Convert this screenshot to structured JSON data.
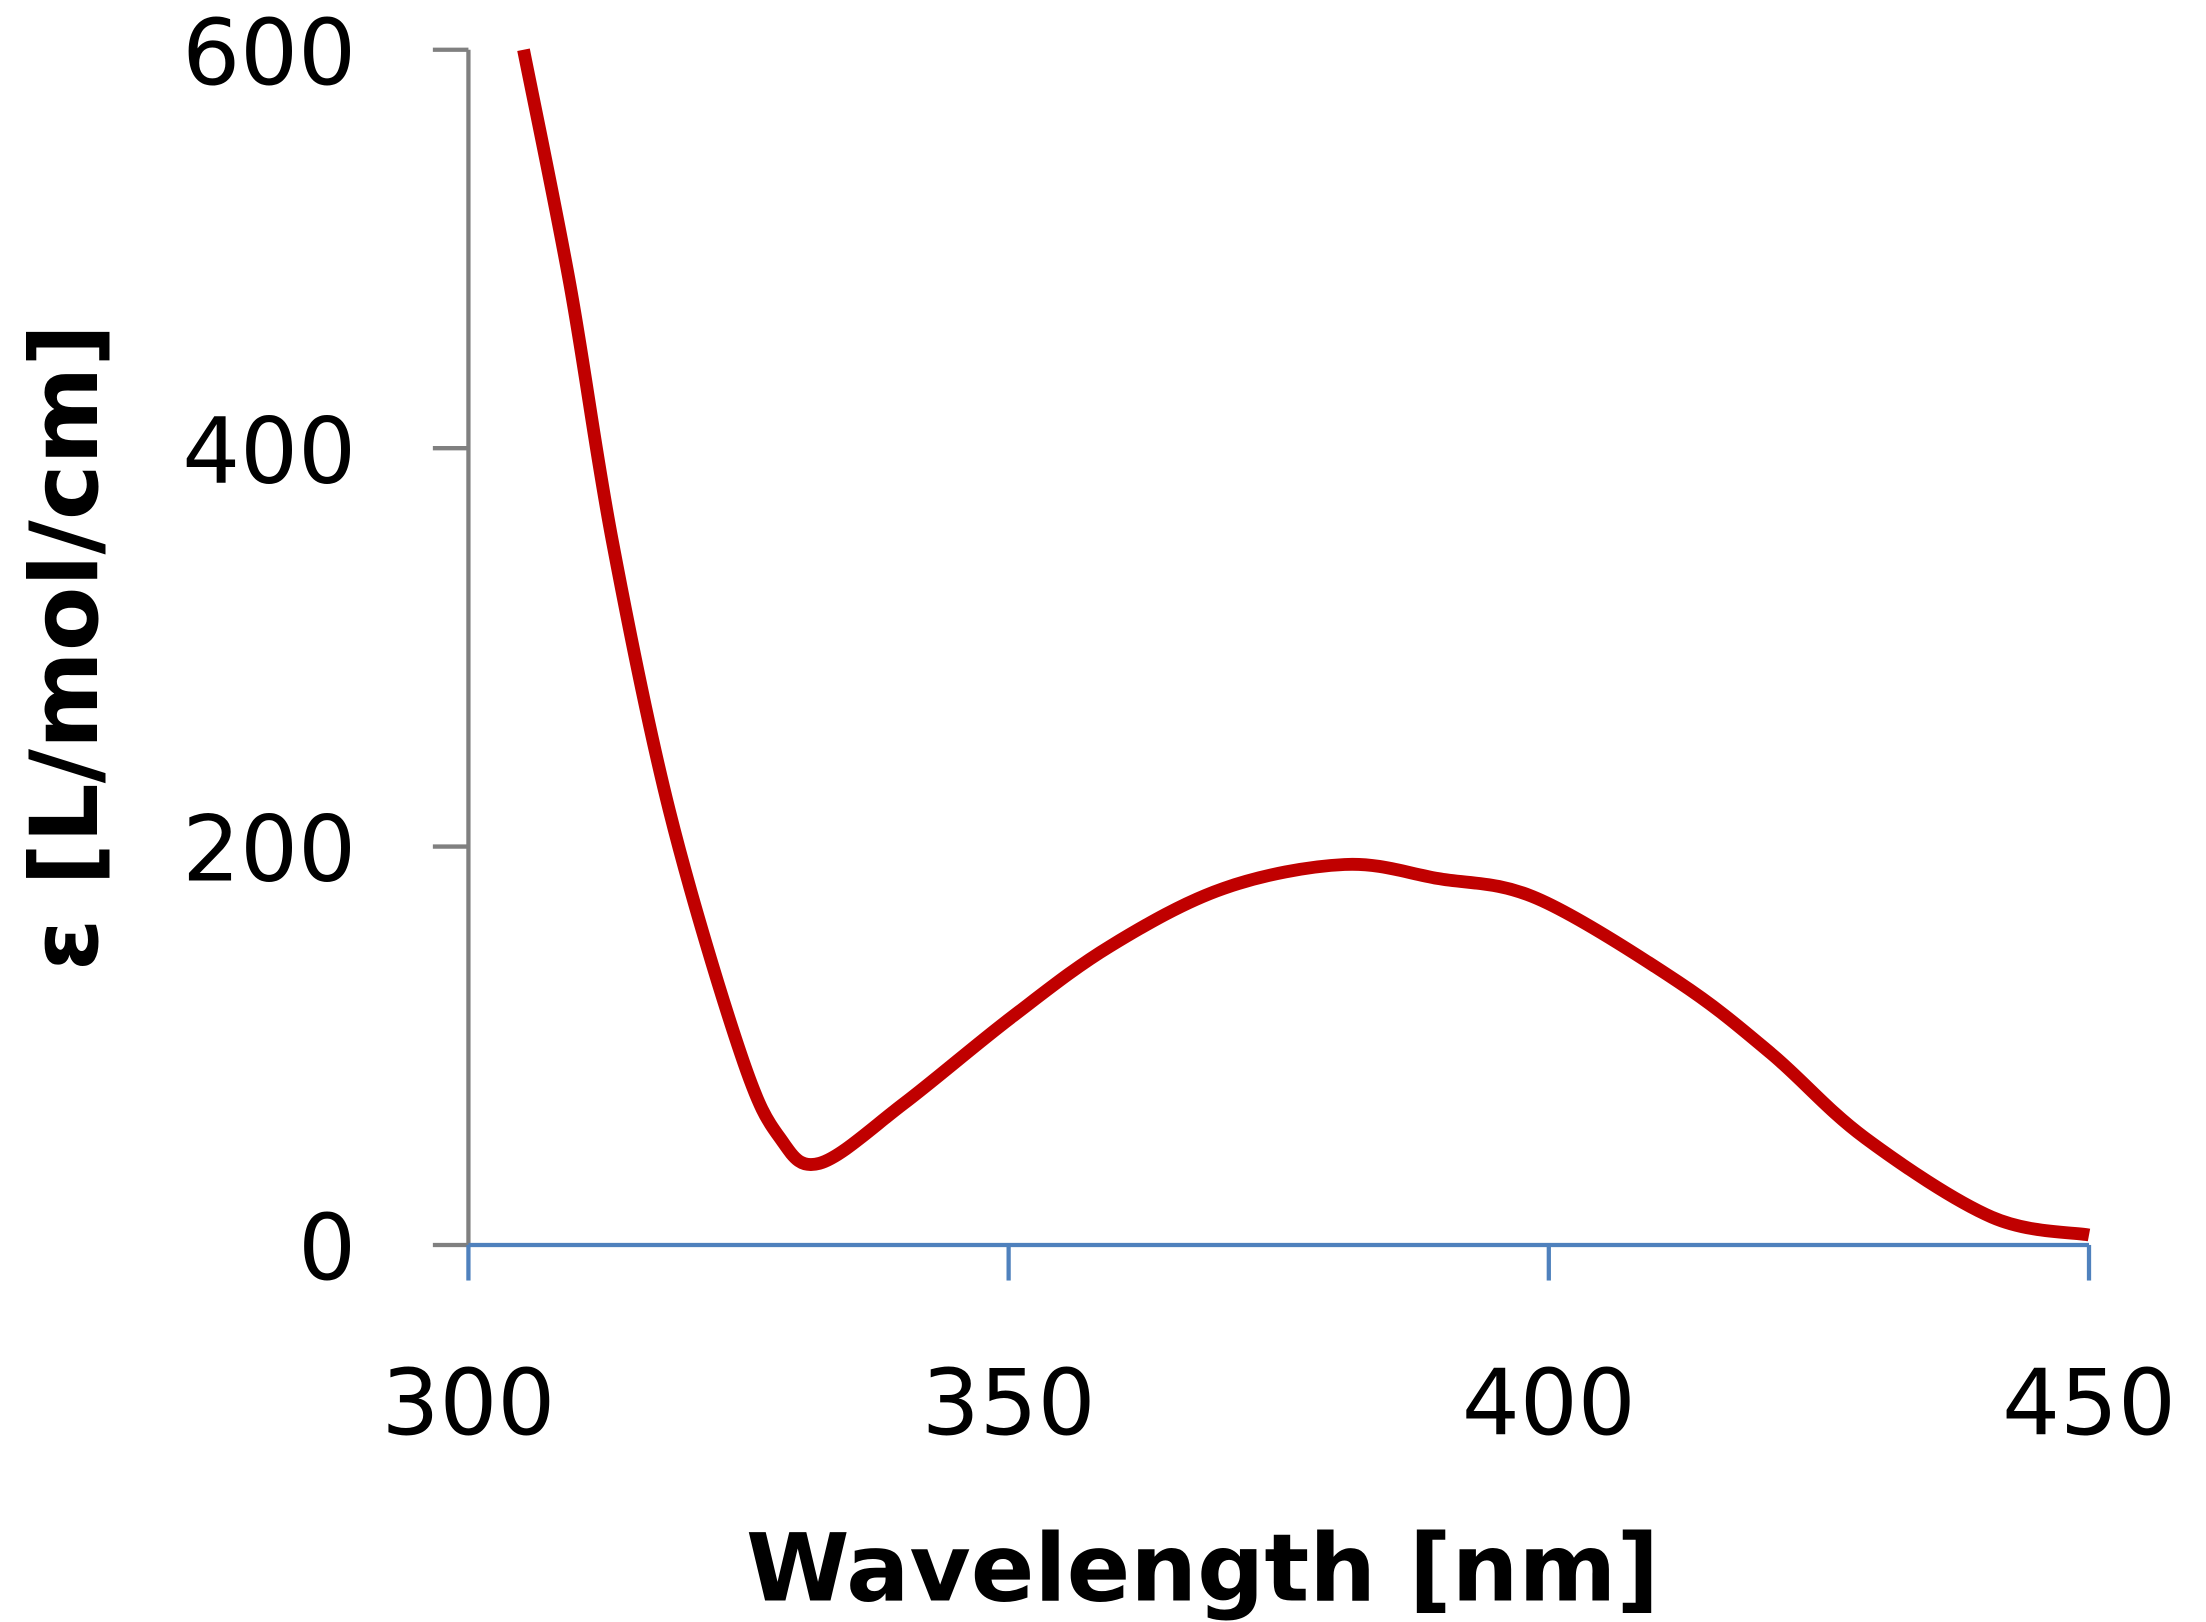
{
  "chart_data": {
    "type": "line",
    "title": "",
    "xlabel": "Wavelength [nm]",
    "ylabel": "ε [L/mol/cm]",
    "xlim": [
      300,
      450
    ],
    "ylim": [
      0,
      600
    ],
    "xticks": [
      300,
      350,
      400,
      450
    ],
    "yticks": [
      0,
      200,
      400,
      600
    ],
    "xtick_labels": [
      "300",
      "350",
      "400",
      "450"
    ],
    "ytick_labels": [
      "0",
      "200",
      "400",
      "600"
    ],
    "grid": false,
    "colors": {
      "series": "#c00000",
      "x_axis": "#4f81bd",
      "y_axis": "#808080"
    },
    "series": [
      {
        "x": [
          305.1,
          309.4,
          313.3,
          318.6,
          325.2,
          328.8,
          332.5,
          340.3,
          350.2,
          359.4,
          369.9,
          381.1,
          389.7,
          398.9,
          412.0,
          420.6,
          429.2,
          441.0,
          450.0
        ],
        "y": [
          600,
          482,
          354,
          218,
          96,
          54,
          41,
          71,
          114,
          150,
          179,
          191,
          184,
          174,
          132,
          96,
          54,
          14,
          5
        ]
      }
    ]
  }
}
